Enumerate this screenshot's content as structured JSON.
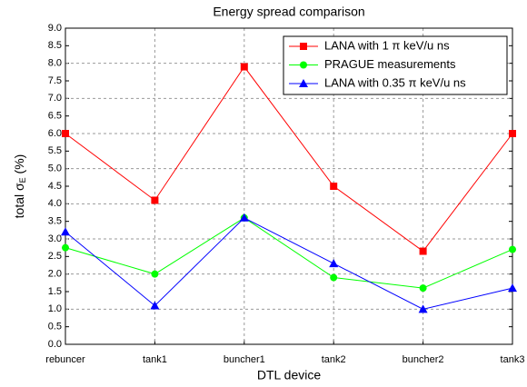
{
  "chart_data": {
    "type": "line",
    "title": "Energy spread comparison",
    "xlabel": "DTL device",
    "ylabel": {
      "prefix": "total σ",
      "sub": "E",
      "suffix": " (%)"
    },
    "categories": [
      "rebuncer",
      "tank1",
      "buncher1",
      "tank2",
      "buncher2",
      "tank3"
    ],
    "series": [
      {
        "name": "LANA  with 1 π keV/u ns",
        "color": "#ff0000",
        "marker": "square",
        "values": [
          6.0,
          4.1,
          7.9,
          4.5,
          2.65,
          6.0
        ]
      },
      {
        "name": "PRAGUE measurements",
        "color": "#00ff00",
        "marker": "circle",
        "values": [
          2.75,
          2.0,
          3.6,
          1.9,
          1.6,
          2.7
        ]
      },
      {
        "name": "LANA  with 0.35 π keV/u ns",
        "color": "#0000ff",
        "marker": "triangle",
        "values": [
          3.2,
          1.1,
          3.6,
          2.3,
          1.0,
          1.6
        ]
      }
    ],
    "ylim": [
      0,
      9
    ],
    "yticks": [
      {
        "value": 0,
        "label": "0.0"
      },
      {
        "value": 0.5,
        "label": "0.5"
      },
      {
        "value": 1,
        "label": "1.0"
      },
      {
        "value": 1.5,
        "label": "1.5"
      },
      {
        "value": 2,
        "label": "2.0"
      },
      {
        "value": 2.5,
        "label": "2.5"
      },
      {
        "value": 3,
        "label": "3.0"
      },
      {
        "value": 3.5,
        "label": "3.5"
      },
      {
        "value": 4,
        "label": "4.0"
      },
      {
        "value": 4.5,
        "label": "4.5"
      },
      {
        "value": 5,
        "label": "5.0"
      },
      {
        "value": 5.5,
        "label": "5.5"
      },
      {
        "value": 6,
        "label": "6.0"
      },
      {
        "value": 6.5,
        "label": "6.5"
      },
      {
        "value": 7,
        "label": "7.0"
      },
      {
        "value": 7.5,
        "label": "7.5"
      },
      {
        "value": 8,
        "label": "8.0"
      },
      {
        "value": 8.5,
        "label": "8.5"
      },
      {
        "value": 9,
        "label": "9.0"
      }
    ],
    "grid": true,
    "legend": "upper right"
  }
}
